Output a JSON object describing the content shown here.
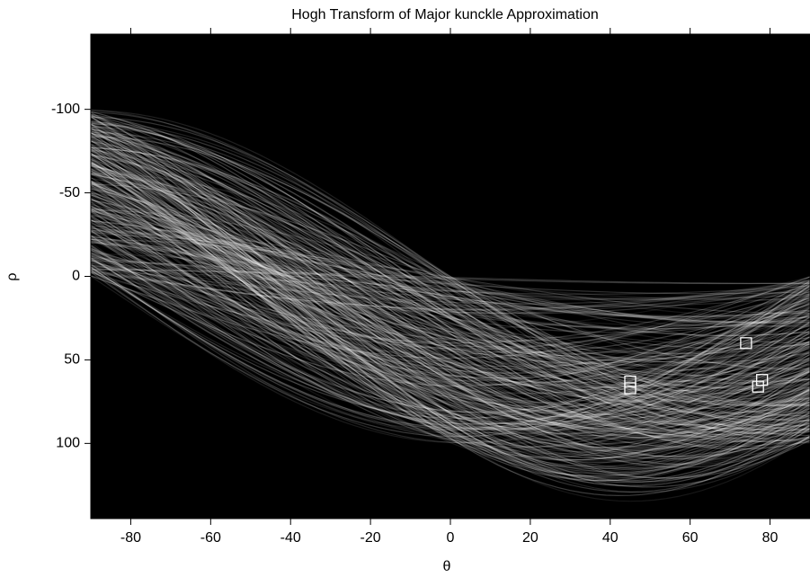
{
  "chart_data": {
    "type": "scatter",
    "title": "Hogh Transform of Major kunckle Approximation",
    "x_label": "θ",
    "y_label": "ρ",
    "xlim": [
      -90,
      90
    ],
    "xticks": [
      -80,
      -60,
      -40,
      -20,
      0,
      20,
      40,
      60,
      80
    ],
    "ylim": [
      -145,
      145
    ],
    "yticks": [
      -100,
      -50,
      0,
      50,
      100
    ],
    "y_reversed": true,
    "series": [
      {
        "color": "#ffffff",
        "x": [
          45,
          45,
          74,
          78,
          77
        ],
        "values": [
          63,
          67,
          40,
          62,
          66
        ]
      }
    ]
  }
}
